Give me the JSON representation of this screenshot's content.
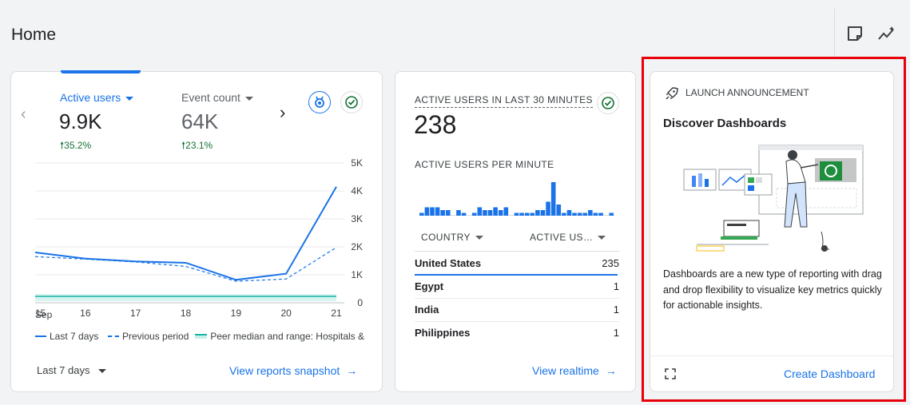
{
  "page": {
    "title": "Home"
  },
  "toolbar": {
    "icons": [
      "insights-note-icon",
      "sparkline-icon"
    ]
  },
  "overview_card": {
    "metrics": [
      {
        "label": "Active users",
        "value": "9.9K",
        "change": "35.2%",
        "selected": true
      },
      {
        "label": "Event count",
        "value": "64K",
        "change": "23.1%",
        "selected": false
      }
    ],
    "y_ticks": [
      "5K",
      "4K",
      "3K",
      "2K",
      "1K",
      "0"
    ],
    "x_ticks": [
      "15",
      "16",
      "17",
      "18",
      "19",
      "20",
      "21"
    ],
    "x_month": "Sep",
    "legend": {
      "current": "Last 7 days",
      "previous": "Previous period",
      "peer": "Peer median and range: Hospitals &"
    },
    "date_range": "Last 7 days",
    "link": "View reports snapshot"
  },
  "chart_data": {
    "type": "line",
    "x": [
      "15",
      "16",
      "17",
      "18",
      "19",
      "20",
      "21"
    ],
    "ylim": [
      0,
      5000
    ],
    "series": [
      {
        "name": "Last 7 days",
        "values": [
          1800,
          1580,
          1480,
          1430,
          820,
          1040,
          4150
        ]
      },
      {
        "name": "Previous period",
        "values": [
          1650,
          1560,
          1460,
          1300,
          770,
          850,
          1980
        ]
      },
      {
        "name": "Peer median and range: Hospitals &",
        "values": [
          230,
          230,
          230,
          230,
          230,
          230,
          230
        ]
      }
    ],
    "grid": true,
    "legend_position": "bottom"
  },
  "realtime_card": {
    "title": "ACTIVE USERS IN LAST 30 MINUTES",
    "value": "238",
    "per_minute_label": "ACTIVE USERS PER MINUTE",
    "per_minute_values": [
      1,
      3,
      3,
      3,
      2,
      2,
      0,
      2,
      1,
      0,
      1,
      3,
      2,
      2,
      3,
      2,
      3,
      0,
      1,
      1,
      1,
      1,
      2,
      2,
      5,
      12,
      4,
      1,
      2,
      1,
      1,
      1,
      2,
      1,
      1,
      0,
      1
    ],
    "columns": [
      "COUNTRY",
      "ACTIVE US…"
    ],
    "rows": [
      {
        "country": "United States",
        "value": "235"
      },
      {
        "country": "Egypt",
        "value": "1"
      },
      {
        "country": "India",
        "value": "1"
      },
      {
        "country": "Philippines",
        "value": "1"
      }
    ],
    "link": "View realtime"
  },
  "announcement_card": {
    "kicker": "LAUNCH ANNOUNCEMENT",
    "title": "Discover Dashboards",
    "body": "Dashboards are a new type of reporting with drag and drop flexibility to visualize key metrics quickly for actionable insights.",
    "cta": "Create Dashboard"
  },
  "colors": {
    "accent": "#1a73e8",
    "positive": "#137333",
    "highlight": "#e8000b"
  }
}
